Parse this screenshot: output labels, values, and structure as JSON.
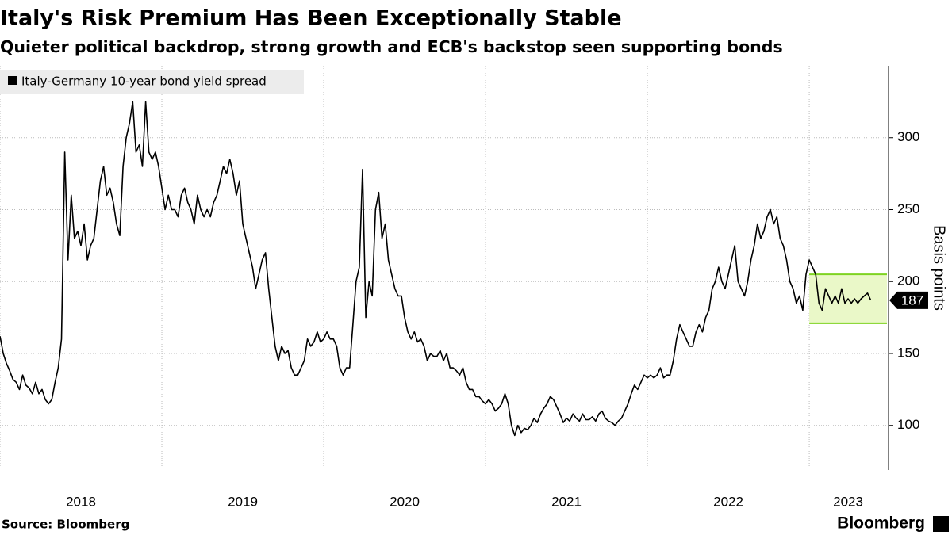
{
  "chart_data": {
    "type": "line",
    "title": "Italy's Risk Premium Has Been Exceptionally Stable",
    "subtitle": "Quieter political backdrop, strong growth and ECB's backstop seen supporting bonds",
    "y_label": "Basis points",
    "source": "Source: Bloomberg",
    "brand": "Bloomberg",
    "xlim": [
      2018,
      2023.48
    ],
    "xticks": [
      2018,
      2019,
      2020,
      2021,
      2022,
      2023
    ],
    "ylim": [
      69,
      350
    ],
    "yticks": [
      100,
      150,
      200,
      250,
      300
    ],
    "grid": true,
    "legend": "top-left",
    "highlight": {
      "x": [
        2023,
        2023.48
      ],
      "y": [
        171,
        205
      ],
      "color": "#eaf8c8",
      "edge": "#7ed321"
    },
    "series": [
      {
        "name": "Italy-Germany 10-year bond yield spread",
        "color": "#000000",
        "x": [
          2018,
          2018.02,
          2018.04,
          2018.06,
          2018.08,
          2018.1,
          2018.12,
          2018.14,
          2018.16,
          2018.18,
          2018.2,
          2018.22,
          2018.24,
          2018.26,
          2018.28,
          2018.3,
          2018.32,
          2018.34,
          2018.36,
          2018.38,
          2018.4,
          2018.42,
          2018.44,
          2018.46,
          2018.48,
          2018.5,
          2018.52,
          2018.54,
          2018.56,
          2018.58,
          2018.6,
          2018.62,
          2018.64,
          2018.66,
          2018.68,
          2018.7,
          2018.72,
          2018.74,
          2018.76,
          2018.78,
          2018.8,
          2018.82,
          2018.84,
          2018.86,
          2018.88,
          2018.9,
          2018.92,
          2018.94,
          2018.96,
          2018.98,
          2019,
          2019.02,
          2019.04,
          2019.06,
          2019.08,
          2019.1,
          2019.12,
          2019.14,
          2019.16,
          2019.18,
          2019.2,
          2019.22,
          2019.24,
          2019.26,
          2019.28,
          2019.3,
          2019.32,
          2019.34,
          2019.36,
          2019.38,
          2019.4,
          2019.42,
          2019.44,
          2019.46,
          2019.48,
          2019.5,
          2019.52,
          2019.54,
          2019.56,
          2019.58,
          2019.6,
          2019.62,
          2019.64,
          2019.66,
          2019.68,
          2019.7,
          2019.72,
          2019.74,
          2019.76,
          2019.78,
          2019.8,
          2019.82,
          2019.84,
          2019.86,
          2019.88,
          2019.9,
          2019.92,
          2019.94,
          2019.96,
          2019.98,
          2020,
          2020.02,
          2020.04,
          2020.06,
          2020.08,
          2020.1,
          2020.12,
          2020.14,
          2020.16,
          2020.18,
          2020.2,
          2020.22,
          2020.24,
          2020.26,
          2020.28,
          2020.3,
          2020.32,
          2020.34,
          2020.36,
          2020.38,
          2020.4,
          2020.42,
          2020.44,
          2020.46,
          2020.48,
          2020.5,
          2020.52,
          2020.54,
          2020.56,
          2020.58,
          2020.6,
          2020.62,
          2020.64,
          2020.66,
          2020.68,
          2020.7,
          2020.72,
          2020.74,
          2020.76,
          2020.78,
          2020.8,
          2020.82,
          2020.84,
          2020.86,
          2020.88,
          2020.9,
          2020.92,
          2020.94,
          2020.96,
          2020.98,
          2021,
          2021.02,
          2021.04,
          2021.06,
          2021.08,
          2021.1,
          2021.12,
          2021.14,
          2021.16,
          2021.18,
          2021.2,
          2021.22,
          2021.24,
          2021.26,
          2021.28,
          2021.3,
          2021.32,
          2021.34,
          2021.36,
          2021.38,
          2021.4,
          2021.42,
          2021.44,
          2021.46,
          2021.48,
          2021.5,
          2021.52,
          2021.54,
          2021.56,
          2021.58,
          2021.6,
          2021.62,
          2021.64,
          2021.66,
          2021.68,
          2021.7,
          2021.72,
          2021.74,
          2021.76,
          2021.78,
          2021.8,
          2021.82,
          2021.84,
          2021.86,
          2021.88,
          2021.9,
          2021.92,
          2021.94,
          2021.96,
          2021.98,
          2022,
          2022.02,
          2022.04,
          2022.06,
          2022.08,
          2022.1,
          2022.12,
          2022.14,
          2022.16,
          2022.18,
          2022.2,
          2022.22,
          2022.24,
          2022.26,
          2022.28,
          2022.3,
          2022.32,
          2022.34,
          2022.36,
          2022.38,
          2022.4,
          2022.42,
          2022.44,
          2022.46,
          2022.48,
          2022.5,
          2022.52,
          2022.54,
          2022.56,
          2022.58,
          2022.6,
          2022.62,
          2022.64,
          2022.66,
          2022.68,
          2022.7,
          2022.72,
          2022.74,
          2022.76,
          2022.78,
          2022.8,
          2022.82,
          2022.84,
          2022.86,
          2022.88,
          2022.9,
          2022.92,
          2022.94,
          2022.96,
          2022.98,
          2023,
          2023.02,
          2023.04,
          2023.06,
          2023.08,
          2023.1,
          2023.12,
          2023.14,
          2023.16,
          2023.18,
          2023.2,
          2023.22,
          2023.24,
          2023.26,
          2023.28,
          2023.3,
          2023.32,
          2023.34,
          2023.36,
          2023.38
        ],
        "values": [
          162,
          150,
          143,
          138,
          132,
          130,
          125,
          135,
          128,
          126,
          122,
          130,
          122,
          125,
          118,
          115,
          118,
          130,
          140,
          160,
          290,
          215,
          260,
          230,
          235,
          225,
          240,
          215,
          225,
          230,
          250,
          270,
          280,
          260,
          265,
          255,
          240,
          232,
          280,
          300,
          310,
          325,
          290,
          295,
          280,
          325,
          290,
          285,
          290,
          280,
          265,
          250,
          260,
          250,
          250,
          245,
          260,
          265,
          255,
          250,
          240,
          260,
          250,
          245,
          250,
          245,
          255,
          260,
          270,
          280,
          275,
          285,
          275,
          260,
          270,
          240,
          230,
          220,
          210,
          195,
          205,
          215,
          220,
          195,
          175,
          155,
          145,
          155,
          150,
          152,
          140,
          135,
          135,
          140,
          145,
          160,
          155,
          158,
          165,
          158,
          160,
          165,
          160,
          160,
          155,
          140,
          135,
          140,
          140,
          170,
          200,
          210,
          278,
          175,
          200,
          190,
          250,
          262,
          230,
          240,
          215,
          205,
          195,
          190,
          190,
          175,
          165,
          160,
          165,
          158,
          160,
          155,
          145,
          150,
          148,
          148,
          152,
          145,
          150,
          140,
          140,
          138,
          135,
          140,
          130,
          125,
          125,
          120,
          120,
          117,
          115,
          118,
          115,
          110,
          112,
          115,
          122,
          115,
          100,
          93,
          100,
          95,
          98,
          97,
          100,
          105,
          102,
          108,
          112,
          115,
          120,
          118,
          113,
          108,
          102,
          105,
          103,
          108,
          105,
          103,
          108,
          104,
          104,
          106,
          103,
          108,
          110,
          105,
          103,
          102,
          100,
          103,
          105,
          110,
          115,
          122,
          128,
          125,
          130,
          135,
          133,
          135,
          133,
          135,
          140,
          133,
          135,
          135,
          145,
          160,
          170,
          165,
          160,
          155,
          155,
          165,
          170,
          165,
          175,
          180,
          195,
          200,
          210,
          200,
          195,
          205,
          215,
          225,
          200,
          195,
          190,
          200,
          215,
          225,
          240,
          230,
          235,
          245,
          250,
          240,
          245,
          230,
          225,
          215,
          200,
          195,
          185,
          190,
          180,
          205,
          215,
          210,
          205,
          185,
          180,
          195,
          190,
          185,
          190,
          185,
          195,
          185,
          188,
          185,
          188,
          185,
          188,
          190,
          192,
          187
        ]
      }
    ]
  }
}
